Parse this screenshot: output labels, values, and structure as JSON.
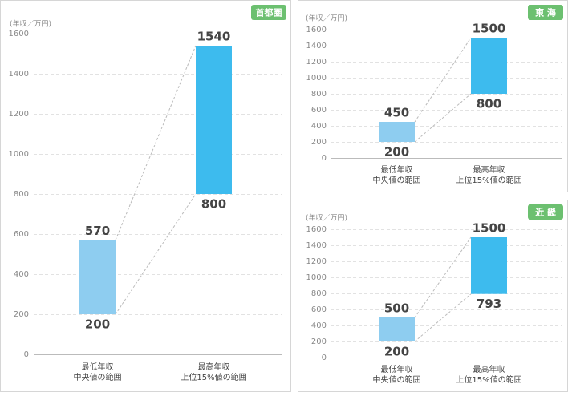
{
  "chart_data": [
    {
      "type": "range-bar",
      "title": "首都圏",
      "ylabel": "(年収／万円)",
      "categories": [
        [
          "最低年収",
          "中央値の範囲"
        ],
        [
          "最高年収",
          "上位15%値の範囲"
        ]
      ],
      "low": [
        200,
        800
      ],
      "high": [
        570,
        1540
      ],
      "colors": [
        "#8ecdf0",
        "#3dbbee"
      ],
      "ylim": [
        0,
        1600
      ],
      "yticks": [
        0,
        200,
        400,
        600,
        800,
        1000,
        1200,
        1400,
        1600
      ],
      "grid": true,
      "badge_color": "#6cc070"
    },
    {
      "type": "range-bar",
      "title": "東 海",
      "ylabel": "(年収／万円)",
      "categories": [
        [
          "最低年収",
          "中央値の範囲"
        ],
        [
          "最高年収",
          "上位15%値の範囲"
        ]
      ],
      "low": [
        200,
        800
      ],
      "high": [
        450,
        1500
      ],
      "colors": [
        "#8ecdf0",
        "#3dbbee"
      ],
      "ylim": [
        0,
        1600
      ],
      "yticks": [
        0,
        200,
        400,
        600,
        800,
        1000,
        1200,
        1400,
        1600
      ],
      "grid": true,
      "badge_color": "#6cc070"
    },
    {
      "type": "range-bar",
      "title": "近 畿",
      "ylabel": "(年収／万円)",
      "categories": [
        [
          "最低年収",
          "中央値の範囲"
        ],
        [
          "最高年収",
          "上位15%値の範囲"
        ]
      ],
      "low": [
        200,
        793
      ],
      "high": [
        500,
        1500
      ],
      "colors": [
        "#8ecdf0",
        "#3dbbee"
      ],
      "ylim": [
        0,
        1600
      ],
      "yticks": [
        0,
        200,
        400,
        600,
        800,
        1000,
        1200,
        1400,
        1600
      ],
      "grid": true,
      "badge_color": "#6cc070"
    }
  ]
}
